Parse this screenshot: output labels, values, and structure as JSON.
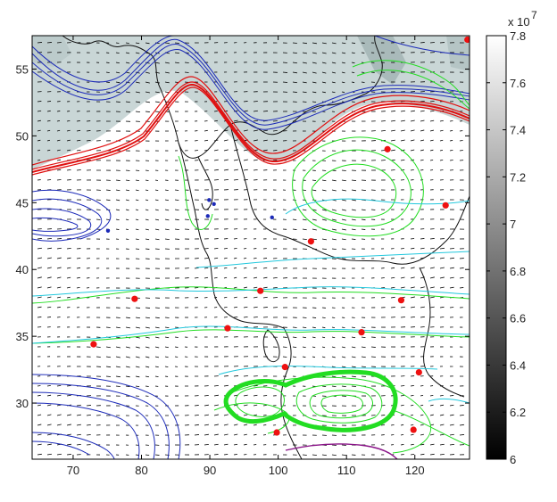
{
  "chart_data": {
    "type": "map-contour",
    "title": "",
    "xlabel": "",
    "ylabel": "",
    "xlim": [
      64,
      128
    ],
    "ylim": [
      25.8,
      57.5
    ],
    "xticks": [
      70,
      80,
      90,
      100,
      110,
      120
    ],
    "yticks": [
      30,
      35,
      40,
      45,
      50,
      55
    ],
    "colorbar": {
      "range": [
        6.0,
        7.8
      ],
      "ticks": [
        "6",
        "6.2",
        "6.4",
        "6.6",
        "6.8",
        "7",
        "7.2",
        "7.4",
        "7.6",
        "7.8"
      ],
      "multiplier": "x 10",
      "exponent": "7",
      "colormap": [
        "#000000",
        "#ffffff"
      ]
    },
    "shading_color": "#c9d6d6",
    "contour_colors": {
      "blue": "#1c2ab8",
      "red": "#e01010",
      "green": "#22dd22",
      "cyan": "#22c8dd",
      "purple": "#8a1488",
      "coast": "#111111"
    },
    "red_markers": [
      {
        "x": 127.7,
        "y": 57.2
      },
      {
        "x": 116.0,
        "y": 49.0
      },
      {
        "x": 124.5,
        "y": 44.8
      },
      {
        "x": 104.8,
        "y": 42.1
      },
      {
        "x": 97.4,
        "y": 38.4
      },
      {
        "x": 118.0,
        "y": 37.7
      },
      {
        "x": 79.0,
        "y": 37.8
      },
      {
        "x": 92.6,
        "y": 35.6
      },
      {
        "x": 112.2,
        "y": 35.3
      },
      {
        "x": 73.0,
        "y": 34.4
      },
      {
        "x": 101.0,
        "y": 32.7
      },
      {
        "x": 120.6,
        "y": 32.3
      },
      {
        "x": 119.8,
        "y": 28.0
      },
      {
        "x": 99.8,
        "y": 27.8
      }
    ],
    "blue_markers": [
      {
        "x": 89.9,
        "y": 45.2
      },
      {
        "x": 90.6,
        "y": 44.9
      },
      {
        "x": 89.7,
        "y": 44.0
      },
      {
        "x": 99.1,
        "y": 43.9
      },
      {
        "x": 75.1,
        "y": 42.9
      }
    ]
  }
}
